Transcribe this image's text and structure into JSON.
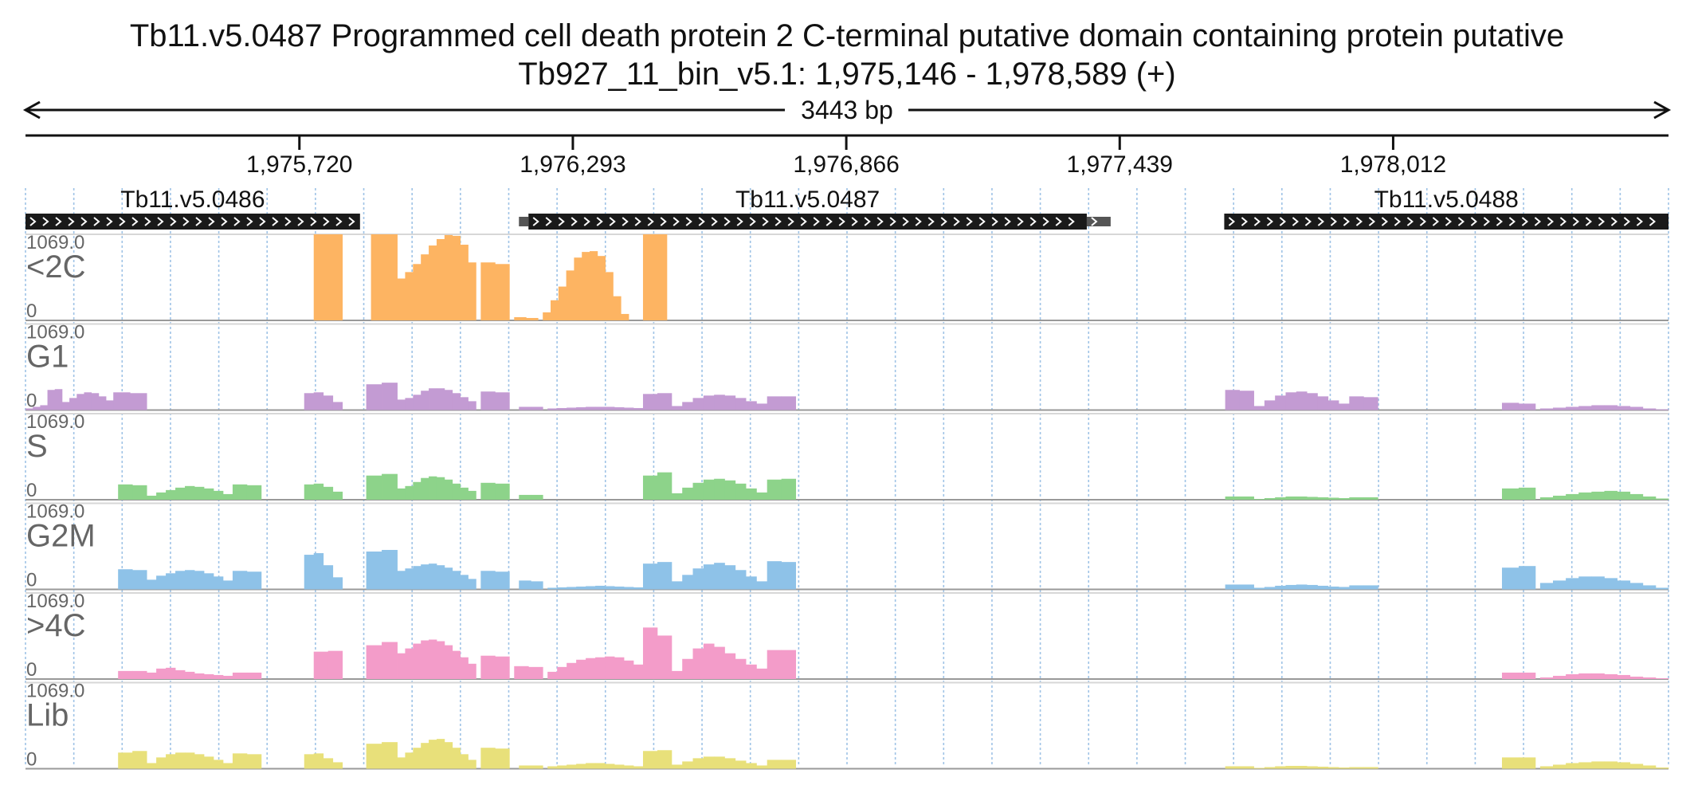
{
  "chart_data": {
    "type": "area",
    "title": "Tb11.v5.0487  Programmed cell death protein 2  C-terminal putative domain containing protein  putative",
    "subtitle": "Tb927_11_bin_v5.1: 1,975,146 - 1,978,589 (+)",
    "span_label": "3443 bp",
    "x_range": [
      1975146,
      1978589
    ],
    "x_ticks": [
      1975720,
      1976293,
      1976866,
      1977439,
      1978012
    ],
    "x_tick_labels": [
      "1,975,720",
      "1,976,293",
      "1,976,866",
      "1,977,439",
      "1,978,012"
    ],
    "genes": [
      {
        "name": "Tb11.v5.0486",
        "start": 1975146,
        "end": 1975847,
        "utr5": null,
        "utr3": null
      },
      {
        "name": "Tb11.v5.0487",
        "start": 1976200,
        "end": 1977370,
        "utr5": [
          1976180,
          1976200
        ],
        "utr3": [
          1977370,
          1977420
        ]
      },
      {
        "name": "Tb11.v5.0488",
        "start": 1977658,
        "end": 1978589,
        "utr5": null,
        "utr3": null
      }
    ],
    "track_scale_max": "1069.0",
    "track_scale_min": "0",
    "ylim": [
      0,
      1069.0
    ],
    "series": [
      {
        "name": "<2C",
        "color": "#fdb462",
        "segments": [
          {
            "start": 1975750,
            "end": 1975810,
            "values": [
              1069,
              1069
            ]
          },
          {
            "start": 1975870,
            "end": 1975925,
            "values": [
              1069,
              1069
            ]
          },
          {
            "start": 1975925,
            "end": 1976090,
            "values": [
              520,
              600,
              700,
              820,
              930,
              1010,
              1060,
              1050,
              940,
              720
            ]
          },
          {
            "start": 1976100,
            "end": 1976160,
            "values": [
              720,
              700
            ]
          },
          {
            "start": 1976170,
            "end": 1976220,
            "values": [
              40,
              30
            ]
          },
          {
            "start": 1976230,
            "end": 1976410,
            "values": [
              100,
              250,
              420,
              620,
              780,
              850,
              860,
              800,
              600,
              300,
              80
            ]
          },
          {
            "start": 1976440,
            "end": 1976490,
            "values": [
              1069,
              1069
            ]
          }
        ]
      },
      {
        "name": "G1",
        "color": "#c39bd3",
        "segments": [
          {
            "start": 1975146,
            "end": 1975330,
            "values": [
              20,
              40,
              60,
              250,
              260,
              100,
              150,
              200,
              220,
              210,
              170,
              120
            ]
          },
          {
            "start": 1975330,
            "end": 1975400,
            "values": [
              220,
              210
            ]
          },
          {
            "start": 1975730,
            "end": 1975810,
            "values": [
              210,
              220,
              180,
              100
            ]
          },
          {
            "start": 1975860,
            "end": 1975925,
            "values": [
              320,
              340
            ]
          },
          {
            "start": 1975925,
            "end": 1976090,
            "values": [
              130,
              150,
              190,
              240,
              270,
              270,
              250,
              210,
              160,
              110
            ]
          },
          {
            "start": 1976100,
            "end": 1976160,
            "values": [
              230,
              220
            ]
          },
          {
            "start": 1976180,
            "end": 1976230,
            "values": [
              40,
              40
            ]
          },
          {
            "start": 1976240,
            "end": 1976440,
            "values": [
              20,
              25,
              30,
              35,
              40,
              40,
              40,
              35,
              30,
              25
            ]
          },
          {
            "start": 1976440,
            "end": 1976500,
            "values": [
              200,
              210
            ]
          },
          {
            "start": 1976500,
            "end": 1976700,
            "values": [
              50,
              100,
              150,
              180,
              190,
              180,
              150,
              110,
              80
            ]
          },
          {
            "start": 1976700,
            "end": 1976760,
            "values": [
              170,
              170
            ]
          },
          {
            "start": 1977660,
            "end": 1977720,
            "values": [
              250,
              240
            ]
          },
          {
            "start": 1977720,
            "end": 1977920,
            "values": [
              50,
              120,
              180,
              220,
              230,
              210,
              170,
              120,
              80
            ]
          },
          {
            "start": 1977920,
            "end": 1977980,
            "values": [
              170,
              160
            ]
          },
          {
            "start": 1978240,
            "end": 1978310,
            "values": [
              90,
              80
            ]
          },
          {
            "start": 1978320,
            "end": 1978589,
            "values": [
              20,
              30,
              40,
              50,
              60,
              60,
              50,
              40,
              20,
              10
            ]
          }
        ]
      },
      {
        "name": "S",
        "color": "#8dd38a",
        "segments": [
          {
            "start": 1975340,
            "end": 1975400,
            "values": [
              190,
              180
            ]
          },
          {
            "start": 1975400,
            "end": 1975580,
            "values": [
              50,
              90,
              120,
              150,
              170,
              160,
              140,
              110,
              70
            ]
          },
          {
            "start": 1975580,
            "end": 1975640,
            "values": [
              190,
              180
            ]
          },
          {
            "start": 1975730,
            "end": 1975810,
            "values": [
              190,
              200,
              160,
              100
            ]
          },
          {
            "start": 1975860,
            "end": 1975925,
            "values": [
              300,
              320
            ]
          },
          {
            "start": 1975925,
            "end": 1976090,
            "values": [
              140,
              170,
              220,
              270,
              290,
              280,
              250,
              200,
              150,
              110
            ]
          },
          {
            "start": 1976100,
            "end": 1976160,
            "values": [
              210,
              200
            ]
          },
          {
            "start": 1976180,
            "end": 1976230,
            "values": [
              60,
              60
            ]
          },
          {
            "start": 1976440,
            "end": 1976500,
            "values": [
              300,
              340
            ]
          },
          {
            "start": 1976500,
            "end": 1976700,
            "values": [
              80,
              150,
              210,
              250,
              260,
              240,
              200,
              140,
              90
            ]
          },
          {
            "start": 1976700,
            "end": 1976760,
            "values": [
              250,
              260
            ]
          },
          {
            "start": 1977660,
            "end": 1977720,
            "values": [
              40,
              40
            ]
          },
          {
            "start": 1977720,
            "end": 1977920,
            "values": [
              10,
              20,
              30,
              40,
              40,
              35,
              30,
              25,
              20
            ]
          },
          {
            "start": 1977920,
            "end": 1977980,
            "values": [
              30,
              30
            ]
          },
          {
            "start": 1978240,
            "end": 1978310,
            "values": [
              140,
              150
            ]
          },
          {
            "start": 1978320,
            "end": 1978589,
            "values": [
              30,
              50,
              70,
              90,
              100,
              110,
              100,
              70,
              40,
              15
            ]
          }
        ]
      },
      {
        "name": "G2M",
        "color": "#8ec2e8",
        "segments": [
          {
            "start": 1975340,
            "end": 1975400,
            "values": [
              250,
              240
            ]
          },
          {
            "start": 1975400,
            "end": 1975580,
            "values": [
              120,
              170,
              200,
              230,
              240,
              230,
              200,
              160,
              110
            ]
          },
          {
            "start": 1975580,
            "end": 1975640,
            "values": [
              230,
              220
            ]
          },
          {
            "start": 1975730,
            "end": 1975810,
            "values": [
              430,
              450,
              300,
              150
            ]
          },
          {
            "start": 1975860,
            "end": 1975925,
            "values": [
              470,
              490
            ]
          },
          {
            "start": 1975925,
            "end": 1976090,
            "values": [
              230,
              260,
              290,
              310,
              320,
              300,
              270,
              230,
              180,
              130
            ]
          },
          {
            "start": 1976100,
            "end": 1976160,
            "values": [
              230,
              220
            ]
          },
          {
            "start": 1976180,
            "end": 1976230,
            "values": [
              110,
              100
            ]
          },
          {
            "start": 1976240,
            "end": 1976440,
            "values": [
              20,
              25,
              30,
              35,
              40,
              45,
              40,
              35,
              30,
              25
            ]
          },
          {
            "start": 1976440,
            "end": 1976500,
            "values": [
              320,
              340
            ]
          },
          {
            "start": 1976500,
            "end": 1976700,
            "values": [
              100,
              180,
              260,
              310,
              330,
              300,
              240,
              160,
              100
            ]
          },
          {
            "start": 1976700,
            "end": 1976760,
            "values": [
              350,
              340
            ]
          },
          {
            "start": 1977660,
            "end": 1977720,
            "values": [
              60,
              60
            ]
          },
          {
            "start": 1977720,
            "end": 1977920,
            "values": [
              20,
              30,
              45,
              55,
              60,
              55,
              45,
              35,
              30
            ]
          },
          {
            "start": 1977920,
            "end": 1977980,
            "values": [
              50,
              50
            ]
          },
          {
            "start": 1978240,
            "end": 1978310,
            "values": [
              270,
              290
            ]
          },
          {
            "start": 1978320,
            "end": 1978589,
            "values": [
              80,
              110,
              140,
              160,
              160,
              140,
              110,
              80,
              50,
              20
            ]
          }
        ]
      },
      {
        "name": ">4C",
        "color": "#f39cc9",
        "segments": [
          {
            "start": 1975340,
            "end": 1975400,
            "values": [
              100,
              100
            ]
          },
          {
            "start": 1975400,
            "end": 1975580,
            "values": [
              80,
              130,
              140,
              110,
              90,
              70,
              60,
              50,
              40
            ]
          },
          {
            "start": 1975580,
            "end": 1975640,
            "values": [
              80,
              80
            ]
          },
          {
            "start": 1975750,
            "end": 1975810,
            "values": [
              340,
              350
            ]
          },
          {
            "start": 1975860,
            "end": 1975925,
            "values": [
              420,
              460
            ]
          },
          {
            "start": 1975925,
            "end": 1976090,
            "values": [
              320,
              380,
              440,
              480,
              490,
              470,
              420,
              350,
              270,
              190
            ]
          },
          {
            "start": 1976100,
            "end": 1976160,
            "values": [
              290,
              280
            ]
          },
          {
            "start": 1976170,
            "end": 1976230,
            "values": [
              160,
              150
            ]
          },
          {
            "start": 1976240,
            "end": 1976440,
            "values": [
              90,
              150,
              200,
              240,
              260,
              270,
              280,
              270,
              230,
              180
            ]
          },
          {
            "start": 1976440,
            "end": 1976500,
            "values": [
              640,
              540
            ]
          },
          {
            "start": 1976500,
            "end": 1976700,
            "values": [
              100,
              250,
              380,
              440,
              400,
              320,
              250,
              180,
              130
            ]
          },
          {
            "start": 1976700,
            "end": 1976760,
            "values": [
              360,
              360
            ]
          },
          {
            "start": 1978240,
            "end": 1978310,
            "values": [
              80,
              80
            ]
          },
          {
            "start": 1978320,
            "end": 1978589,
            "values": [
              20,
              40,
              60,
              70,
              70,
              60,
              50,
              30,
              20,
              10
            ]
          }
        ]
      },
      {
        "name": "Lib",
        "color": "#e8e07a",
        "segments": [
          {
            "start": 1975340,
            "end": 1975400,
            "values": [
              200,
              220
            ]
          },
          {
            "start": 1975400,
            "end": 1975580,
            "values": [
              70,
              140,
              180,
              200,
              200,
              180,
              150,
              110,
              70
            ]
          },
          {
            "start": 1975580,
            "end": 1975640,
            "values": [
              190,
              180
            ]
          },
          {
            "start": 1975730,
            "end": 1975810,
            "values": [
              180,
              190,
              130,
              80
            ]
          },
          {
            "start": 1975860,
            "end": 1975925,
            "values": [
              310,
              330
            ]
          },
          {
            "start": 1975925,
            "end": 1976090,
            "values": [
              140,
              200,
              260,
              320,
              360,
              370,
              330,
              260,
              180,
              110
            ]
          },
          {
            "start": 1976100,
            "end": 1976160,
            "values": [
              260,
              250
            ]
          },
          {
            "start": 1976180,
            "end": 1976230,
            "values": [
              40,
              40
            ]
          },
          {
            "start": 1976240,
            "end": 1976440,
            "values": [
              30,
              40,
              50,
              60,
              70,
              70,
              60,
              50,
              40,
              30
            ]
          },
          {
            "start": 1976440,
            "end": 1976500,
            "values": [
              220,
              230
            ]
          },
          {
            "start": 1976500,
            "end": 1976700,
            "values": [
              50,
              90,
              130,
              150,
              150,
              130,
              100,
              70,
              40
            ]
          },
          {
            "start": 1976700,
            "end": 1976760,
            "values": [
              110,
              110
            ]
          },
          {
            "start": 1977660,
            "end": 1977720,
            "values": [
              30,
              30
            ]
          },
          {
            "start": 1977720,
            "end": 1977920,
            "values": [
              10,
              20,
              30,
              35,
              35,
              30,
              25,
              20,
              15
            ]
          },
          {
            "start": 1977920,
            "end": 1977980,
            "values": [
              20,
              20
            ]
          },
          {
            "start": 1978240,
            "end": 1978310,
            "values": [
              140,
              140
            ]
          },
          {
            "start": 1978320,
            "end": 1978589,
            "values": [
              30,
              50,
              70,
              80,
              90,
              90,
              80,
              60,
              40,
              15
            ]
          }
        ]
      }
    ],
    "grid": true,
    "legend": "none"
  }
}
